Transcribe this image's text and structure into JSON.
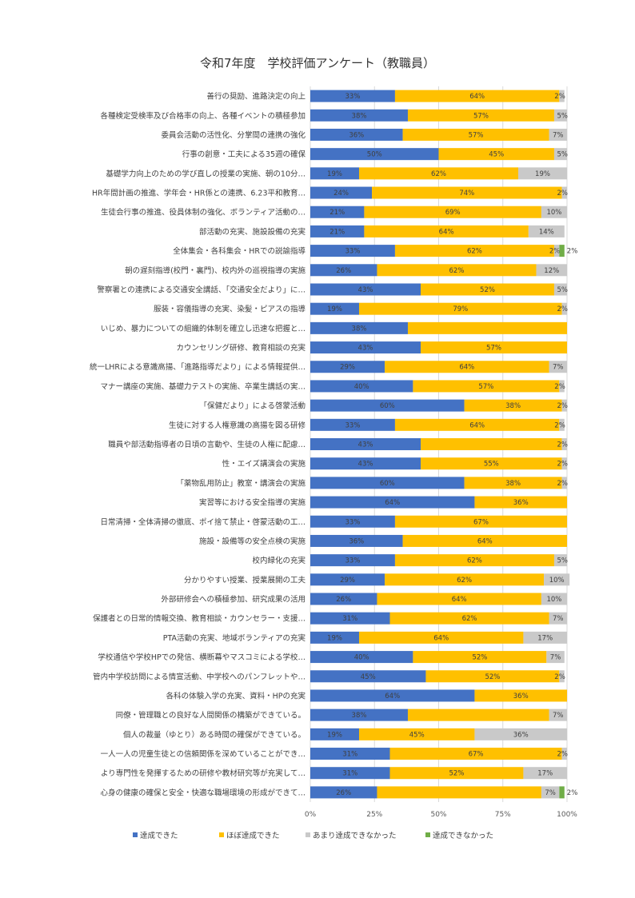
{
  "chart_data": {
    "type": "bar",
    "orientation": "horizontal",
    "stacked": true,
    "title": "令和7年度　学校評価アンケート（教職員）",
    "xlabel": "",
    "ylabel": "",
    "xlim": [
      0,
      100
    ],
    "x_ticks": [
      "0%",
      "25%",
      "50%",
      "75%",
      "100%"
    ],
    "grid": true,
    "legend_position": "bottom",
    "categories": [
      "善行の奨励、進路決定の向上",
      "各種検定受検率及び合格率の向上、各種イベントの積極参加",
      "委員会活動の活性化、分掌間の連携の強化",
      "行事の創意・工夫による35週の確保",
      "基礎学力向上のための学び直しの授業の実施、朝の10分…",
      "HR年間計画の推進、学年会・HR係との連携、6.23平和教育…",
      "生徒会行事の推進、役員体制の強化、ボランティア活動の…",
      "部活動の充実、施設設備の充実",
      "全体集会・各科集会・HRでの説諭指導",
      "朝の遅刻指導(校門・裏門)、校内外の巡視指導の実施",
      "警察署との連携による交通安全講話、「交通安全だより」に…",
      "服装・容儀指導の充実、染髪・ピアスの指導",
      "いじめ、暴力についての組織的体制を確立し迅速な把握と…",
      "カウンセリング研修、教育相談の充実",
      "統一LHRによる意識高揚、「進路指導だより」による情報提供…",
      "マナー講座の実施、基礎力テストの実施、卒業生講話の実…",
      "「保健だより」による啓蒙活動",
      "生徒に対する人権意識の高揚を図る研修",
      "職員や部活動指導者の日頃の言動や、生徒の人権に配慮…",
      "性・エイズ講演会の実施",
      "「薬物乱用防止」教室・講演会の実施",
      "実習等における安全指導の実施",
      "日常清掃・全体清掃の徹底、ポイ捨て禁止・啓蒙活動の工…",
      "施設・設備等の安全点検の実施",
      "校内緑化の充実",
      "分かりやすい授業、授業展開の工夫",
      "外部研修会への積極参加、研究成果の活用",
      "保護者との日常的情報交換、教育相談・カウンセラー・支援…",
      "PTA活動の充実、地域ボランティアの充実",
      "学校通信や学校HPでの発信、横断幕やマスコミによる学校…",
      "管内中学校訪問による情宣活動、中学校へのパンフレットや…",
      "各科の体験入学の充実、資料・HPの充実",
      "同僚・管理職との良好な人間関係の構築ができている。",
      "個人の裁量（ゆとり）ある時間の確保ができている。",
      "一人一人の児童生徒との信頼関係を深めていることができ…",
      "より専門性を発揮するための研修や教材研究等が充実して…",
      "心身の健康の確保と安全・快適な職場環境の形成ができて…"
    ],
    "series": [
      {
        "name": "達成できた",
        "color": "#4472C4",
        "values": [
          33,
          38,
          36,
          50,
          19,
          24,
          21,
          21,
          33,
          26,
          43,
          19,
          38,
          43,
          29,
          40,
          60,
          33,
          43,
          43,
          60,
          64,
          33,
          36,
          33,
          29,
          26,
          31,
          19,
          40,
          45,
          64,
          38,
          19,
          31,
          31,
          26
        ]
      },
      {
        "name": "ほぼ達成できた",
        "color": "#FFC000",
        "values": [
          64,
          57,
          57,
          45,
          62,
          74,
          69,
          64,
          62,
          62,
          52,
          79,
          62,
          57,
          64,
          57,
          38,
          64,
          55,
          55,
          38,
          36,
          67,
          64,
          62,
          62,
          64,
          62,
          64,
          52,
          52,
          36,
          55,
          45,
          67,
          52,
          64
        ]
      },
      {
        "name": "あまり達成できなかった",
        "color": "#C9C9C9",
        "values": [
          2,
          5,
          7,
          5,
          19,
          2,
          10,
          14,
          2,
          12,
          5,
          2,
          0,
          0,
          7,
          2,
          2,
          2,
          2,
          2,
          2,
          0,
          0,
          0,
          5,
          10,
          10,
          7,
          17,
          7,
          2,
          0,
          7,
          36,
          2,
          17,
          7
        ]
      },
      {
        "name": "達成できなかった",
        "color": "#70AD47",
        "values": [
          0,
          0,
          0,
          0,
          0,
          0,
          0,
          0,
          2,
          0,
          0,
          0,
          0,
          0,
          0,
          0,
          0,
          0,
          0,
          0,
          0,
          0,
          0,
          0,
          0,
          0,
          0,
          0,
          0,
          0,
          0,
          0,
          0,
          0,
          0,
          0,
          2
        ]
      }
    ],
    "hidden_labels": [
      [
        12,
        1
      ],
      [
        18,
        1
      ],
      [
        32,
        1
      ],
      [
        36,
        1
      ]
    ]
  }
}
